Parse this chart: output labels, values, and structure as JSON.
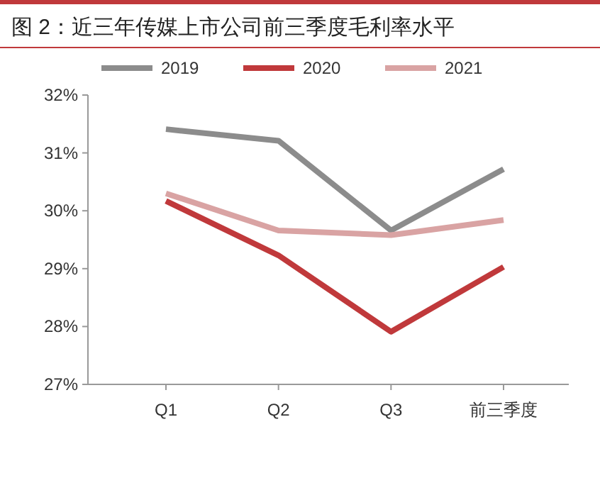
{
  "chart_data": {
    "type": "line",
    "title": "图 2：近三年传媒上市公司前三季度毛利率水平",
    "categories": [
      "Q1",
      "Q2",
      "Q3",
      "前三季度"
    ],
    "series": [
      {
        "name": "2019",
        "color": "#8c8c8c",
        "values": [
          31.41,
          31.21,
          29.66,
          30.72
        ]
      },
      {
        "name": "2020",
        "color": "#c0393b",
        "values": [
          30.17,
          29.23,
          27.91,
          29.03
        ]
      },
      {
        "name": "2021",
        "color": "#d9a3a3",
        "values": [
          30.3,
          29.66,
          29.58,
          29.84
        ]
      }
    ],
    "ylim": [
      27,
      32
    ],
    "yticks": [
      {
        "value": 27,
        "label": "27%"
      },
      {
        "value": 28,
        "label": "28%"
      },
      {
        "value": 29,
        "label": "29%"
      },
      {
        "value": 30,
        "label": "30%"
      },
      {
        "value": 31,
        "label": "31%"
      },
      {
        "value": 32,
        "label": "32%"
      }
    ],
    "legend": "top",
    "grid": false,
    "marker": "none",
    "line_style": "solid"
  }
}
